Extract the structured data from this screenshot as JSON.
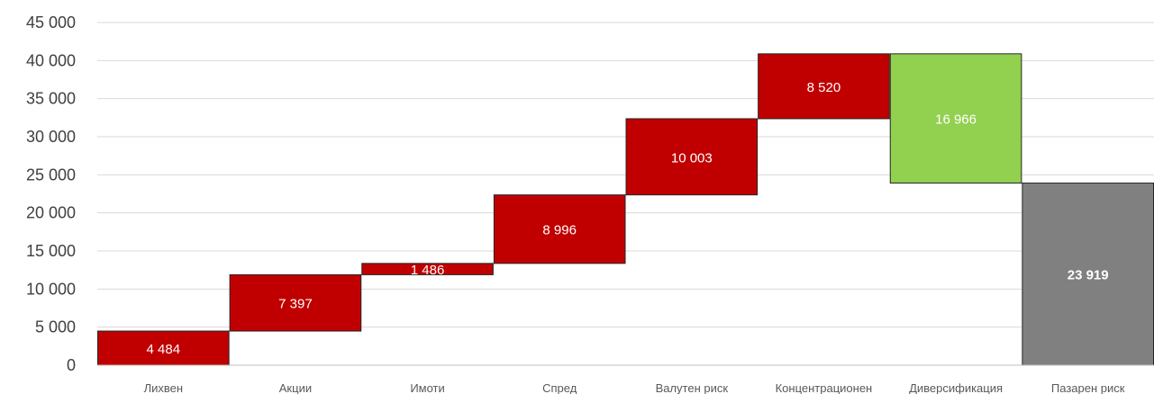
{
  "chart_data": {
    "type": "bar",
    "subtype": "waterfall",
    "title": "",
    "xlabel": "",
    "ylabel": "",
    "ylim": [
      0,
      45000
    ],
    "yticks": [
      0,
      5000,
      10000,
      15000,
      20000,
      25000,
      30000,
      35000,
      40000,
      45000
    ],
    "ytick_labels": [
      "0",
      "5 000",
      "10 000",
      "15 000",
      "20 000",
      "25 000",
      "30 000",
      "35 000",
      "40 000",
      "45 000"
    ],
    "grid": true,
    "legend": "none",
    "categories": [
      "Лихвен",
      "Акции",
      "Имоти",
      "Спред",
      "Валутен риск",
      "Концентрационен",
      "Диверсификация",
      "Пазарен риск"
    ],
    "values": [
      4484,
      7397,
      1486,
      8996,
      10003,
      8520,
      -16966,
      23919
    ],
    "bar_kind": [
      "increase",
      "increase",
      "increase",
      "increase",
      "increase",
      "increase",
      "decrease",
      "total"
    ],
    "data_labels": [
      "4 484",
      "7 397",
      "1 486",
      "8 996",
      "10 003",
      "8 520",
      "16 966",
      "23 919"
    ],
    "colors": {
      "increase": "#C00000",
      "decrease": "#92D050",
      "total": "#808080",
      "grid": "#D9D9D9",
      "axis": "#BFBFBF"
    }
  }
}
